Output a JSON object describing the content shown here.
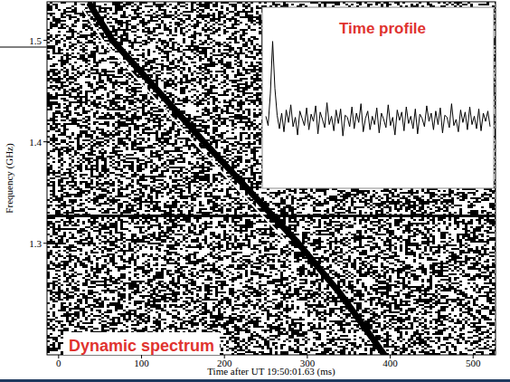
{
  "chart_data": {
    "type": "line",
    "x_label": "Time after UT 19:50:01.63 (ms)",
    "y_label": "Frequency (GHz)",
    "xlim": [
      -14,
      527
    ],
    "xticks": [
      0,
      100,
      200,
      300,
      400,
      500
    ],
    "ylim": [
      1.19,
      1.538
    ],
    "yticks": [
      1.3,
      1.4,
      1.5
    ],
    "series": [
      {
        "color": "#000000",
        "x": [
          38,
          65,
          120,
          175,
          232,
          289,
          340,
          393
        ],
        "values": [
          1.535,
          1.5,
          1.45,
          1.4,
          1.35,
          1.3,
          1.25,
          1.19
        ]
      },
      {
        "color": "#ffffff",
        "x": [
          26,
          53,
          108,
          163,
          220,
          277
        ],
        "values": [
          1.535,
          1.5,
          1.45,
          1.4,
          1.35,
          1.3
        ]
      }
    ],
    "hline": 1.327,
    "inset": {
      "title": "Time profile",
      "ylim": [
        -5.5,
        8
      ],
      "values": [
        0.3,
        -0.6,
        2.5,
        7.5,
        3.0,
        0.4,
        -0.9,
        0.6,
        -1.2,
        0.9,
        -0.3,
        1.4,
        -0.7,
        0.2,
        -1.5,
        0.8,
        0.1,
        -0.6,
        1.1,
        -1.0,
        0.5,
        -0.2,
        1.3,
        -1.4,
        0.7,
        0.0,
        -0.8,
        1.6,
        -0.5,
        0.3,
        -1.1,
        0.9,
        -0.4,
        1.0,
        -1.6,
        0.4,
        0.2,
        -0.7,
        1.2,
        -0.9,
        0.6,
        -0.3,
        1.5,
        -1.2,
        0.1,
        0.8,
        -1.0,
        0.3,
        -0.5,
        1.1,
        -1.3,
        0.6,
        0.0,
        -0.8,
        1.4,
        -0.6,
        0.2,
        -1.5,
        0.9,
        -0.1,
        0.7,
        -1.1,
        1.2,
        -0.4,
        0.3,
        -0.9,
        1.0,
        -1.4,
        0.5,
        0.1,
        -0.7,
        1.3,
        -0.2,
        0.6,
        -1.0,
        0.8,
        -0.5,
        1.1,
        -1.3,
        0.4,
        0.2,
        -0.8,
        1.5,
        -0.6,
        0.0,
        -1.2,
        0.9,
        -0.3,
        0.7,
        -1.0,
        1.2,
        -0.5,
        0.3,
        -0.9,
        1.0,
        -1.1,
        0.6,
        -0.2,
        0.8,
        -0.7
      ]
    },
    "annotation": "Dynamic spectrum"
  }
}
